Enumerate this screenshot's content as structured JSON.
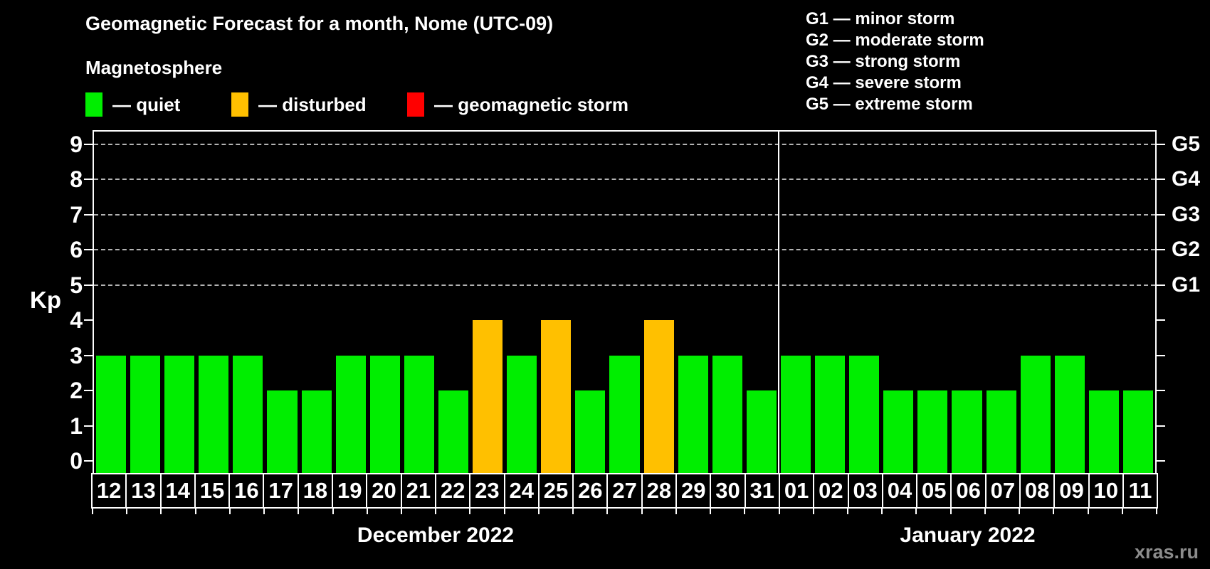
{
  "title": "Geomagnetic Forecast for a month, Nome (UTC-09)",
  "subtitle": "Magnetosphere",
  "legend": [
    {
      "label": "— quiet",
      "status": "quiet",
      "color": "#00ee00"
    },
    {
      "label": "— disturbed",
      "status": "disturbed",
      "color": "#ffc000"
    },
    {
      "label": "— geomagnetic storm",
      "status": "storm",
      "color": "#ff0000"
    }
  ],
  "g_legend": [
    "G1 — minor storm",
    "G2 — moderate storm",
    "G3 — strong storm",
    "G4 — severe storm",
    "G5 — extreme storm"
  ],
  "watermark": "xras.ru",
  "chart_data": {
    "type": "bar",
    "title": "Geomagnetic Forecast for a month, Nome (UTC-09)",
    "ylabel": "Kp",
    "ylim": [
      0,
      9.4
    ],
    "yticks": [
      0,
      1,
      2,
      3,
      4,
      5,
      6,
      7,
      8,
      9
    ],
    "gridlines_kp": [
      5,
      6,
      7,
      8,
      9
    ],
    "grid": "horizontal dashed lines at storm levels G1-G5 (Kp 5-9)",
    "right_axis": [
      {
        "label": "G1",
        "kp": 5
      },
      {
        "label": "G2",
        "kp": 6
      },
      {
        "label": "G3",
        "kp": 7
      },
      {
        "label": "G4",
        "kp": 8
      },
      {
        "label": "G5",
        "kp": 9
      }
    ],
    "status_colors": {
      "quiet": "#00ee00",
      "disturbed": "#ffc000",
      "storm": "#ff0000"
    },
    "series": [
      {
        "month": "December 2022",
        "points": [
          {
            "day": "12",
            "kp": 3,
            "status": "quiet"
          },
          {
            "day": "13",
            "kp": 3,
            "status": "quiet"
          },
          {
            "day": "14",
            "kp": 3,
            "status": "quiet"
          },
          {
            "day": "15",
            "kp": 3,
            "status": "quiet"
          },
          {
            "day": "16",
            "kp": 3,
            "status": "quiet"
          },
          {
            "day": "17",
            "kp": 2,
            "status": "quiet"
          },
          {
            "day": "18",
            "kp": 2,
            "status": "quiet"
          },
          {
            "day": "19",
            "kp": 3,
            "status": "quiet"
          },
          {
            "day": "20",
            "kp": 3,
            "status": "quiet"
          },
          {
            "day": "21",
            "kp": 3,
            "status": "quiet"
          },
          {
            "day": "22",
            "kp": 2,
            "status": "quiet"
          },
          {
            "day": "23",
            "kp": 4,
            "status": "disturbed"
          },
          {
            "day": "24",
            "kp": 3,
            "status": "quiet"
          },
          {
            "day": "25",
            "kp": 4,
            "status": "disturbed"
          },
          {
            "day": "26",
            "kp": 2,
            "status": "quiet"
          },
          {
            "day": "27",
            "kp": 3,
            "status": "quiet"
          },
          {
            "day": "28",
            "kp": 4,
            "status": "disturbed"
          },
          {
            "day": "29",
            "kp": 3,
            "status": "quiet"
          },
          {
            "day": "30",
            "kp": 3,
            "status": "quiet"
          },
          {
            "day": "31",
            "kp": 2,
            "status": "quiet"
          }
        ]
      },
      {
        "month": "January 2022",
        "points": [
          {
            "day": "01",
            "kp": 3,
            "status": "quiet"
          },
          {
            "day": "02",
            "kp": 3,
            "status": "quiet"
          },
          {
            "day": "03",
            "kp": 3,
            "status": "quiet"
          },
          {
            "day": "04",
            "kp": 2,
            "status": "quiet"
          },
          {
            "day": "05",
            "kp": 2,
            "status": "quiet"
          },
          {
            "day": "06",
            "kp": 2,
            "status": "quiet"
          },
          {
            "day": "07",
            "kp": 2,
            "status": "quiet"
          },
          {
            "day": "08",
            "kp": 3,
            "status": "quiet"
          },
          {
            "day": "09",
            "kp": 3,
            "status": "quiet"
          },
          {
            "day": "10",
            "kp": 2,
            "status": "quiet"
          },
          {
            "day": "11",
            "kp": 2,
            "status": "quiet"
          }
        ]
      }
    ]
  }
}
